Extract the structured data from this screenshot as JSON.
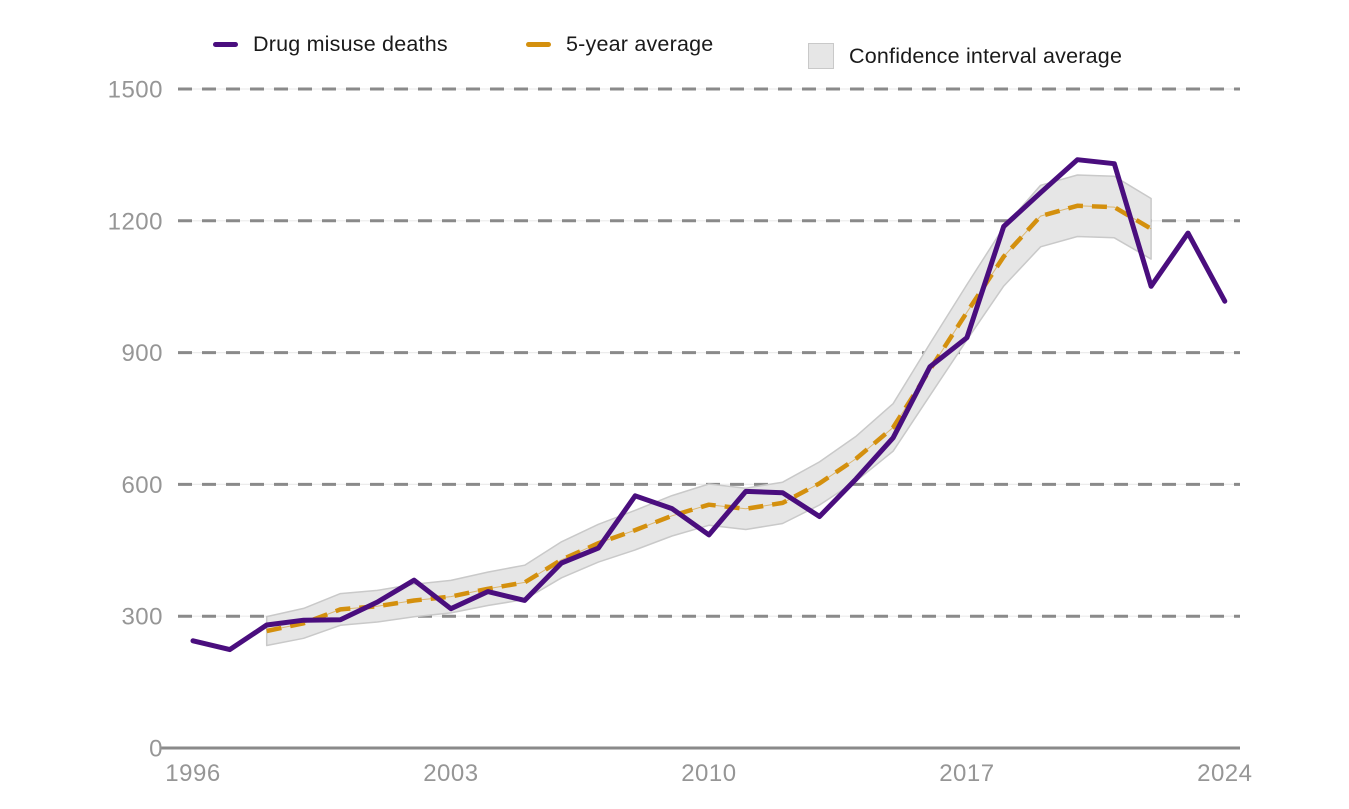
{
  "chart_data": {
    "type": "line",
    "title": "",
    "xlabel": "",
    "ylabel": "",
    "x_ticks": [
      1996,
      2003,
      2010,
      2017,
      2024
    ],
    "y_ticks": [
      0,
      300,
      600,
      900,
      1200,
      1500
    ],
    "ylim": [
      0,
      1500
    ],
    "xlim": [
      1996,
      2024
    ],
    "grid": "horizontal dashed",
    "legend_position": "top",
    "style": {
      "grid_color": "#8a8a8a",
      "axis_color": "#8a8a8a",
      "tick_color": "#969696"
    },
    "series": [
      {
        "name": "Drug misuse deaths",
        "type": "line",
        "color": "#4a0e7e",
        "x": [
          1996,
          1997,
          1998,
          1999,
          2000,
          2001,
          2002,
          2003,
          2004,
          2005,
          2006,
          2007,
          2008,
          2009,
          2010,
          2011,
          2012,
          2013,
          2014,
          2015,
          2016,
          2017,
          2018,
          2019,
          2020,
          2021,
          2022,
          2023,
          2024
        ],
        "values": [
          244,
          224,
          280,
          291,
          292,
          332,
          382,
          317,
          356,
          336,
          421,
          455,
          574,
          545,
          485,
          584,
          581,
          527,
          613,
          706,
          868,
          934,
          1187,
          1264,
          1339,
          1330,
          1051,
          1172,
          1017
        ]
      },
      {
        "name": "5-year average",
        "type": "dashed-line",
        "color": "#d4900e",
        "x": [
          1998,
          1999,
          2000,
          2001,
          2002,
          2003,
          2004,
          2005,
          2006,
          2007,
          2008,
          2009,
          2010,
          2011,
          2012,
          2013,
          2014,
          2015,
          2016,
          2017,
          2018,
          2019,
          2020,
          2021,
          2022
        ],
        "values": [
          266.2,
          283.8,
          315.4,
          322.8,
          335.8,
          344.6,
          362.4,
          377.0,
          428.4,
          466.2,
          496.0,
          528.6,
          553.8,
          544.4,
          558.0,
          602.2,
          659.0,
          729.6,
          861.6,
          991.8,
          1118.4,
          1210.8,
          1234.2,
          1231.2,
          1181.8
        ]
      },
      {
        "name": "Confidence interval average",
        "type": "band",
        "fill": "#e6e6e6",
        "edge": "#c9c9c9",
        "x": [
          1998,
          1999,
          2000,
          2001,
          2002,
          2003,
          2004,
          2005,
          2006,
          2007,
          2008,
          2009,
          2010,
          2011,
          2012,
          2013,
          2014,
          2015,
          2016,
          2017,
          2018,
          2019,
          2020,
          2021,
          2022
        ],
        "lower": [
          233.2,
          249.8,
          279.4,
          286.8,
          298.8,
          307.6,
          324.4,
          338.0,
          387.4,
          423.2,
          451.0,
          482.6,
          506.8,
          497.4,
          511.0,
          553.2,
          608.0,
          675.6,
          802.6,
          928.8,
          1051.4,
          1140.8,
          1164.2,
          1161.2,
          1112.8
        ],
        "upper": [
          299.2,
          317.8,
          351.4,
          358.8,
          372.8,
          381.6,
          400.4,
          416.0,
          469.4,
          509.2,
          541.0,
          574.6,
          600.8,
          591.4,
          605.0,
          651.2,
          710.0,
          783.6,
          920.6,
          1054.8,
          1185.4,
          1280.8,
          1304.2,
          1301.2,
          1250.8
        ]
      }
    ]
  }
}
